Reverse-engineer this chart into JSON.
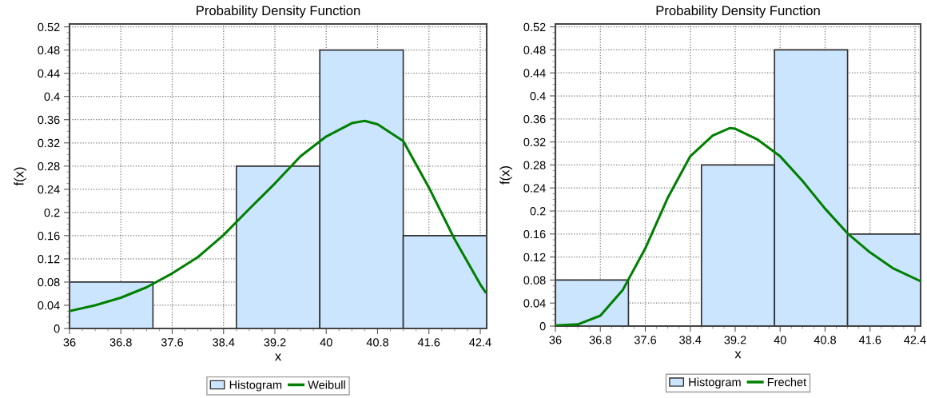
{
  "chart_data": [
    {
      "type": "histogram",
      "title": "Probability Density Function",
      "xlabel": "x",
      "ylabel": "f(x)",
      "bins": [
        36,
        37.3,
        38.6,
        39.9,
        41.2,
        42.5
      ],
      "xlim": [
        36,
        42.5
      ],
      "ylim": [
        0,
        0.525
      ],
      "xticks": [
        36,
        36.8,
        37.6,
        38.4,
        39.2,
        40,
        40.8,
        41.6,
        42.4
      ],
      "yticks": [
        0,
        0.04,
        0.08,
        0.12,
        0.16,
        0.2,
        0.24,
        0.28,
        0.32,
        0.36,
        0.4,
        0.44,
        0.48,
        0.52
      ],
      "grid": true,
      "legend": "bottom",
      "series": [
        {
          "name": "Histogram",
          "color": "#cce5ff",
          "values": [
            0.08,
            0,
            0.28,
            0.48,
            0.16
          ]
        },
        {
          "name": "Weibull",
          "type": "line",
          "color": "#008000",
          "x": [
            36,
            36.4,
            36.8,
            37.2,
            37.6,
            38.0,
            38.4,
            38.8,
            39.2,
            39.6,
            40.0,
            40.4,
            40.6,
            40.8,
            41.2,
            41.6,
            42.0,
            42.4,
            42.48
          ],
          "values": [
            0.03,
            0.04,
            0.053,
            0.071,
            0.095,
            0.123,
            0.161,
            0.206,
            0.25,
            0.297,
            0.331,
            0.354,
            0.358,
            0.352,
            0.323,
            0.243,
            0.154,
            0.076,
            0.063
          ]
        }
      ]
    },
    {
      "type": "histogram",
      "title": "Probability Density Function",
      "xlabel": "x",
      "ylabel": "f(x)",
      "bins": [
        36,
        37.3,
        38.6,
        39.9,
        41.2,
        42.5
      ],
      "xlim": [
        36,
        42.5
      ],
      "ylim": [
        0,
        0.525
      ],
      "xticks": [
        36,
        36.8,
        37.6,
        38.4,
        39.2,
        40,
        40.8,
        41.6,
        42.4
      ],
      "yticks": [
        0,
        0.04,
        0.08,
        0.12,
        0.16,
        0.2,
        0.24,
        0.28,
        0.32,
        0.36,
        0.4,
        0.44,
        0.48,
        0.52
      ],
      "grid": true,
      "legend": "bottom",
      "series": [
        {
          "name": "Histogram",
          "color": "#cce5ff",
          "values": [
            0.08,
            0,
            0.28,
            0.48,
            0.16
          ]
        },
        {
          "name": "Frechet",
          "type": "line",
          "color": "#008000",
          "x": [
            36,
            36.4,
            36.8,
            37.2,
            37.6,
            38.0,
            38.4,
            38.8,
            39.1,
            39.2,
            39.6,
            40.0,
            40.4,
            40.8,
            41.2,
            41.6,
            42.0,
            42.5
          ],
          "values": [
            0.001,
            0.003,
            0.018,
            0.063,
            0.135,
            0.223,
            0.295,
            0.331,
            0.344,
            0.343,
            0.324,
            0.295,
            0.252,
            0.204,
            0.161,
            0.128,
            0.101,
            0.078
          ]
        }
      ]
    }
  ]
}
